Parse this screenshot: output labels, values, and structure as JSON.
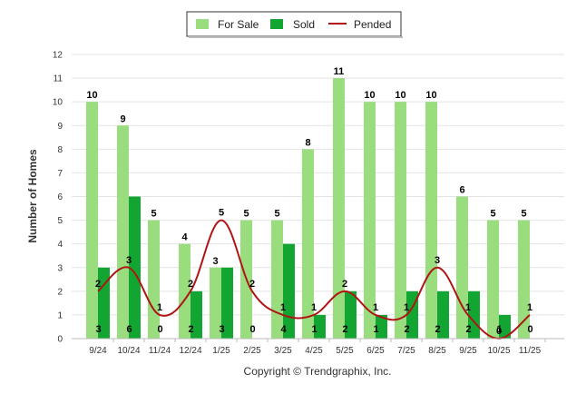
{
  "chart_data": {
    "type": "bar",
    "title": "",
    "xlabel": "",
    "ylabel": "Number of Homes",
    "ylim": [
      0,
      12
    ],
    "yticks": [
      0,
      1,
      2,
      3,
      4,
      5,
      6,
      7,
      8,
      9,
      10,
      11,
      12
    ],
    "grid": true,
    "legend_position": "top-center",
    "categories": [
      "9/24",
      "10/24",
      "11/24",
      "12/24",
      "1/25",
      "2/25",
      "3/25",
      "4/25",
      "5/25",
      "6/25",
      "7/25",
      "8/25",
      "9/25",
      "10/25",
      "11/25"
    ],
    "series": [
      {
        "name": "For Sale",
        "kind": "bar",
        "color": "#99dd7f",
        "values": [
          10,
          9,
          5,
          4,
          3,
          5,
          5,
          8,
          11,
          10,
          10,
          10,
          6,
          5,
          5
        ]
      },
      {
        "name": "Sold",
        "kind": "bar",
        "color": "#13a531",
        "values": [
          3,
          6,
          0,
          2,
          3,
          0,
          4,
          1,
          2,
          1,
          2,
          2,
          2,
          1,
          0
        ]
      },
      {
        "name": "Pended",
        "kind": "line",
        "color": "#b01515",
        "values": [
          2,
          3,
          1,
          2,
          5,
          2,
          1,
          1,
          2,
          1,
          1,
          3,
          1,
          0,
          1
        ]
      }
    ],
    "copyright": "Copyright © Trendgraphix, Inc."
  }
}
